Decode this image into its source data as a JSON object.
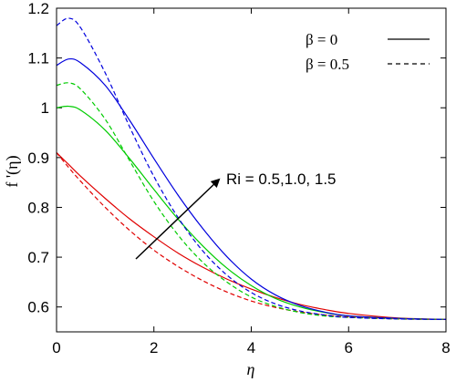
{
  "chart_data": {
    "type": "line",
    "xlabel": "η",
    "ylabel": "f '(η)",
    "xlim": [
      0,
      8
    ],
    "ylim": [
      0.55,
      1.2
    ],
    "xticks": [
      0,
      2,
      4,
      6,
      8
    ],
    "yticks": [
      0.6,
      0.7,
      0.8,
      0.9,
      1,
      1.1,
      1.2
    ],
    "grid": false,
    "legend": {
      "position": "top-right",
      "entries": [
        {
          "label": "β = 0",
          "style": "solid"
        },
        {
          "label": "β = 0.5",
          "style": "dashed"
        }
      ]
    },
    "annotation": {
      "text": "Ri = 0.5,1.0, 1.5",
      "arrow": "increasing Ri"
    },
    "x": [
      0,
      0.25,
      0.5,
      1,
      1.5,
      2,
      2.5,
      3,
      3.5,
      4,
      4.5,
      5,
      5.5,
      6,
      7,
      8
    ],
    "series": [
      {
        "color": "#e00000",
        "style": "solid",
        "values": [
          0.91,
          0.886,
          0.862,
          0.818,
          0.777,
          0.741,
          0.708,
          0.68,
          0.656,
          0.636,
          0.619,
          0.605,
          0.595,
          0.587,
          0.578,
          0.575
        ]
      },
      {
        "color": "#00cc00",
        "style": "solid",
        "values": [
          1.0,
          1.003,
          0.995,
          0.955,
          0.898,
          0.836,
          0.776,
          0.723,
          0.678,
          0.643,
          0.617,
          0.6,
          0.589,
          0.582,
          0.577,
          0.575
        ]
      },
      {
        "color": "#0000dd",
        "style": "solid",
        "values": [
          1.085,
          1.098,
          1.09,
          1.045,
          0.975,
          0.898,
          0.824,
          0.758,
          0.701,
          0.656,
          0.624,
          0.603,
          0.59,
          0.582,
          0.577,
          0.575
        ]
      },
      {
        "color": "#e00000",
        "style": "dashed",
        "values": [
          0.91,
          0.88,
          0.852,
          0.8,
          0.754,
          0.714,
          0.681,
          0.653,
          0.63,
          0.612,
          0.599,
          0.59,
          0.584,
          0.58,
          0.576,
          0.575
        ]
      },
      {
        "color": "#00cc00",
        "style": "dashed",
        "values": [
          1.045,
          1.05,
          1.037,
          0.977,
          0.894,
          0.812,
          0.744,
          0.69,
          0.65,
          0.62,
          0.601,
          0.589,
          0.582,
          0.579,
          0.576,
          0.575
        ]
      },
      {
        "color": "#0000dd",
        "style": "dashed",
        "values": [
          1.165,
          1.18,
          1.16,
          1.07,
          0.962,
          0.862,
          0.779,
          0.713,
          0.664,
          0.629,
          0.606,
          0.592,
          0.584,
          0.579,
          0.576,
          0.575
        ]
      }
    ]
  }
}
